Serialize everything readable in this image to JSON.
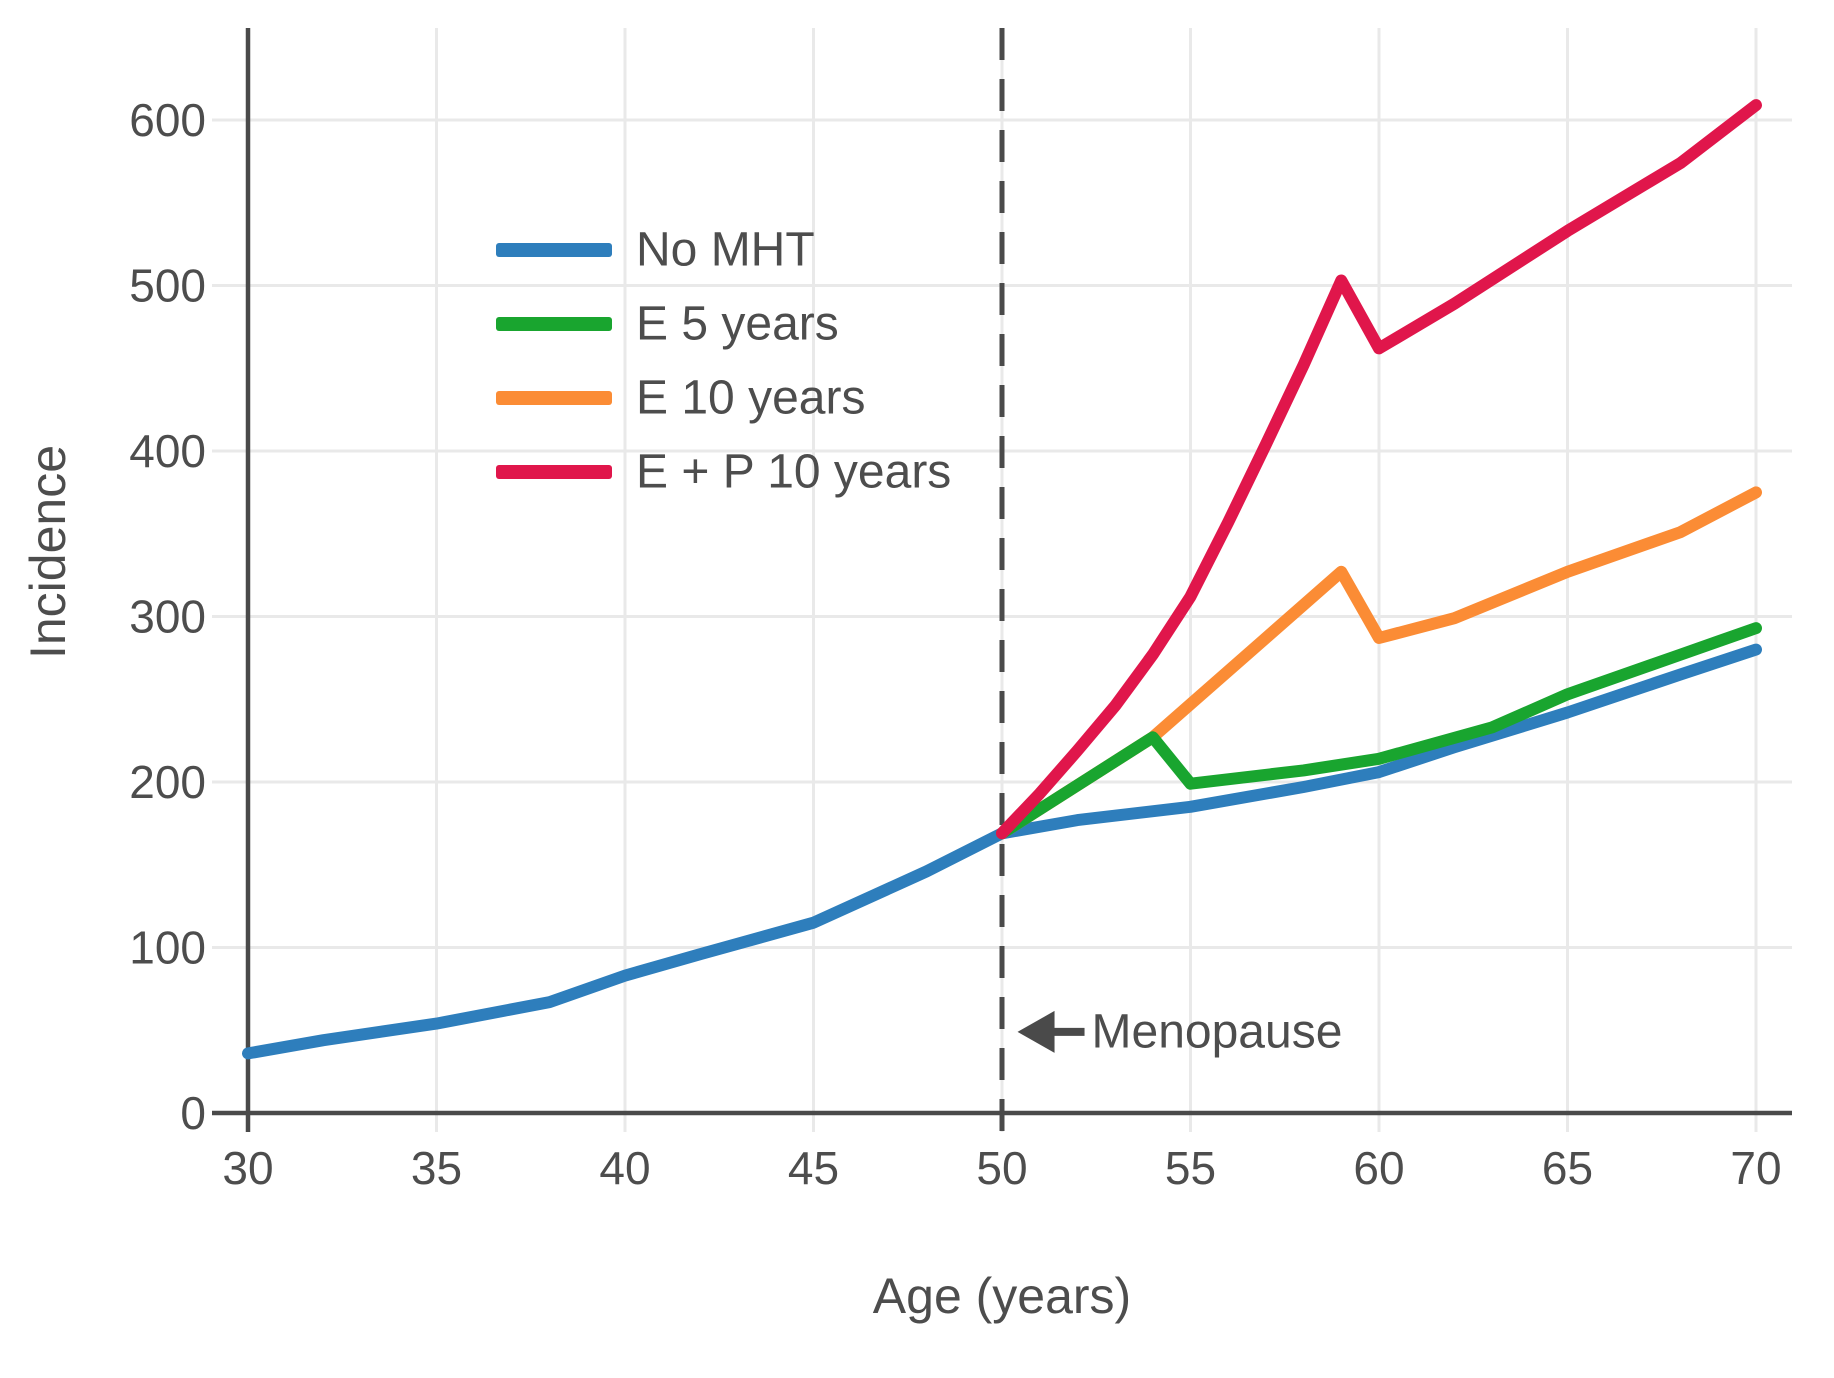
{
  "figure": {
    "background": "#ffffff",
    "text_color": "#4d4d4d",
    "axis_color": "#4a4a4a",
    "grid_color": "#e9e9e9",
    "tick_color": "#d4d4d4"
  },
  "chart_data": {
    "type": "line",
    "title": "",
    "xlabel": "Age (years)",
    "ylabel": "Incidence",
    "xlim": [
      30,
      70
    ],
    "ylim": [
      0,
      650
    ],
    "xticks": [
      30,
      35,
      40,
      45,
      50,
      55,
      60,
      65,
      70
    ],
    "yticks": [
      0,
      100,
      200,
      300,
      400,
      500,
      600
    ],
    "grid": true,
    "legend_position": "upper-left-inside",
    "legend_order": [
      "No MHT",
      "E 5 years",
      "E 10 years",
      "E + P 10 years"
    ],
    "series": [
      {
        "name": "No MHT",
        "color": "#2e7ebc",
        "points": [
          [
            30,
            36
          ],
          [
            32,
            44
          ],
          [
            35,
            54
          ],
          [
            38,
            67
          ],
          [
            40,
            83
          ],
          [
            42,
            96
          ],
          [
            45,
            115
          ],
          [
            48,
            146
          ],
          [
            50,
            169
          ],
          [
            52,
            177
          ],
          [
            55,
            185
          ],
          [
            58,
            197
          ],
          [
            60,
            206
          ],
          [
            62,
            221
          ],
          [
            65,
            242
          ],
          [
            68,
            265
          ],
          [
            70,
            280
          ]
        ]
      },
      {
        "name": "E 10 years",
        "color": "#fb8c35",
        "points": [
          [
            50,
            169
          ],
          [
            54,
            227
          ],
          [
            59,
            327
          ],
          [
            60,
            287
          ],
          [
            62,
            299
          ],
          [
            65,
            327
          ],
          [
            68,
            351
          ],
          [
            70,
            375
          ]
        ]
      },
      {
        "name": "E 5 years",
        "color": "#19a52f",
        "points": [
          [
            50,
            169
          ],
          [
            54,
            227
          ],
          [
            55,
            199
          ],
          [
            58,
            207
          ],
          [
            60,
            214
          ],
          [
            63,
            233
          ],
          [
            65,
            253
          ],
          [
            68,
            277
          ],
          [
            70,
            293
          ]
        ]
      },
      {
        "name": "E + P 10 years",
        "color": "#e0164b",
        "points": [
          [
            50,
            169
          ],
          [
            51,
            193
          ],
          [
            52,
            219
          ],
          [
            53,
            246
          ],
          [
            54,
            277
          ],
          [
            55,
            312
          ],
          [
            56,
            357
          ],
          [
            57,
            404
          ],
          [
            58,
            452
          ],
          [
            59,
            503
          ],
          [
            60,
            462
          ],
          [
            62,
            489
          ],
          [
            65,
            533
          ],
          [
            68,
            574
          ],
          [
            70,
            609
          ]
        ]
      }
    ],
    "reference_line": {
      "x": 50,
      "style": "dashed",
      "color": "#4a4a4a"
    },
    "annotations": [
      {
        "text": "Menopause",
        "arrow": "left",
        "x": 50.2,
        "y": 49
      }
    ]
  }
}
